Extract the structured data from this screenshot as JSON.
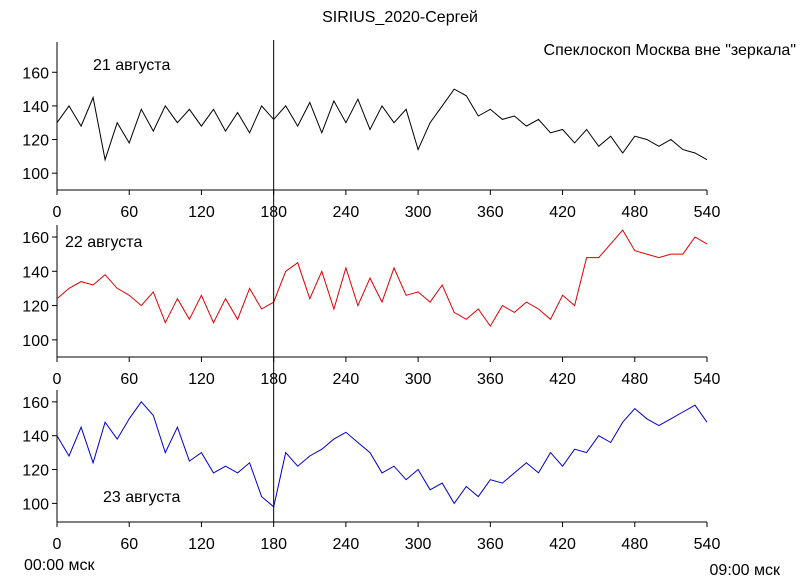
{
  "title": "SIRIUS_2020-Сергей",
  "subtitle": "Спеклоскоп Москва вне \"зеркала\"",
  "start_label": "00:00 мск",
  "end_label": "09:00 мск",
  "chart_data": [
    {
      "type": "line",
      "annotation": "21 августа",
      "color": "#000000",
      "vline": 180,
      "x": [
        0,
        10,
        20,
        30,
        40,
        50,
        60,
        70,
        80,
        90,
        100,
        110,
        120,
        130,
        140,
        150,
        160,
        170,
        180,
        190,
        200,
        210,
        220,
        230,
        240,
        250,
        260,
        270,
        280,
        290,
        300,
        310,
        320,
        330,
        340,
        350,
        360,
        370,
        380,
        390,
        400,
        410,
        420,
        430,
        440,
        450,
        460,
        470,
        480,
        490,
        500,
        510,
        520,
        530,
        540
      ],
      "values": [
        130,
        140,
        128,
        145,
        108,
        130,
        118,
        138,
        125,
        140,
        130,
        138,
        128,
        138,
        125,
        136,
        124,
        140,
        132,
        140,
        128,
        142,
        124,
        143,
        130,
        144,
        126,
        140,
        130,
        138,
        114,
        130,
        140,
        150,
        146,
        134,
        138,
        132,
        134,
        128,
        132,
        124,
        126,
        118,
        126,
        116,
        122,
        112,
        122,
        120,
        116,
        120,
        114,
        112,
        108
      ],
      "xlim": [
        0,
        540
      ],
      "ylim": [
        90,
        178
      ],
      "xticks": [
        0,
        60,
        120,
        180,
        240,
        300,
        360,
        420,
        480,
        540
      ],
      "yticks": [
        100,
        120,
        140,
        160
      ]
    },
    {
      "type": "line",
      "annotation": "22 августа",
      "color": "#e00000",
      "vline": 180,
      "x": [
        0,
        10,
        20,
        30,
        40,
        50,
        60,
        70,
        80,
        90,
        100,
        110,
        120,
        130,
        140,
        150,
        160,
        170,
        180,
        190,
        200,
        210,
        220,
        230,
        240,
        250,
        260,
        270,
        280,
        290,
        300,
        310,
        320,
        330,
        340,
        350,
        360,
        370,
        380,
        390,
        400,
        410,
        420,
        430,
        440,
        450,
        460,
        470,
        480,
        490,
        500,
        510,
        520,
        530,
        540
      ],
      "values": [
        124,
        130,
        134,
        132,
        138,
        130,
        126,
        120,
        128,
        110,
        124,
        112,
        126,
        110,
        124,
        112,
        130,
        118,
        122,
        140,
        145,
        124,
        140,
        118,
        142,
        120,
        136,
        122,
        142,
        126,
        128,
        122,
        132,
        116,
        112,
        118,
        108,
        120,
        116,
        122,
        118,
        112,
        126,
        120,
        148,
        148,
        156,
        164,
        152,
        150,
        148,
        150,
        150,
        160,
        156
      ],
      "xlim": [
        0,
        540
      ],
      "ylim": [
        90,
        167
      ],
      "xticks": [
        0,
        60,
        120,
        180,
        240,
        300,
        360,
        420,
        480,
        540
      ],
      "yticks": [
        100,
        120,
        140,
        160
      ]
    },
    {
      "type": "line",
      "annotation": "23 августа",
      "color": "#0000cc",
      "vline": 180,
      "x": [
        0,
        10,
        20,
        30,
        40,
        50,
        60,
        70,
        80,
        90,
        100,
        110,
        120,
        130,
        140,
        150,
        160,
        170,
        180,
        190,
        200,
        210,
        220,
        230,
        240,
        250,
        260,
        270,
        280,
        290,
        300,
        310,
        320,
        330,
        340,
        350,
        360,
        370,
        380,
        390,
        400,
        410,
        420,
        430,
        440,
        450,
        460,
        470,
        480,
        490,
        500,
        510,
        520,
        530,
        540
      ],
      "values": [
        140,
        128,
        145,
        124,
        148,
        138,
        150,
        160,
        152,
        130,
        145,
        125,
        130,
        118,
        122,
        118,
        124,
        104,
        98,
        130,
        122,
        128,
        132,
        138,
        142,
        136,
        130,
        118,
        122,
        114,
        120,
        108,
        112,
        100,
        110,
        104,
        114,
        112,
        118,
        124,
        118,
        130,
        122,
        132,
        130,
        140,
        136,
        148,
        156,
        150,
        146,
        150,
        154,
        158,
        148
      ],
      "xlim": [
        0,
        540
      ],
      "ylim": [
        89,
        167
      ],
      "xticks": [
        0,
        60,
        120,
        180,
        240,
        300,
        360,
        420,
        480,
        540
      ],
      "yticks": [
        100,
        120,
        140,
        160
      ]
    }
  ]
}
